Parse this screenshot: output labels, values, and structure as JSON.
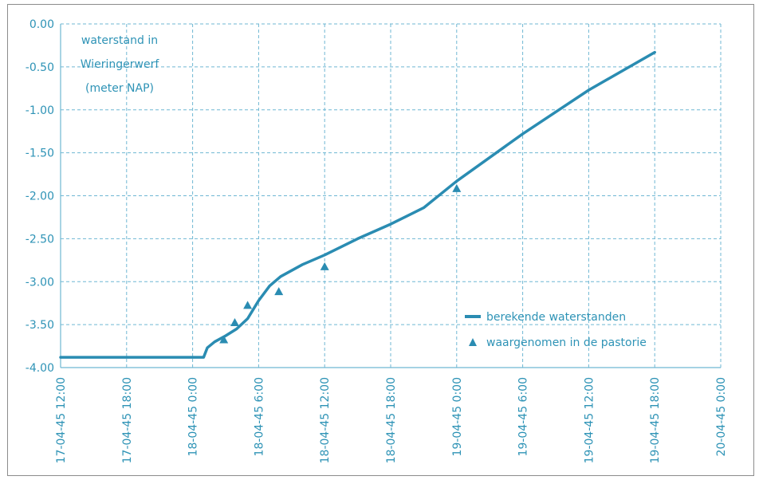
{
  "colors": {
    "series": "#2a8cb2",
    "text": "#2e93b6",
    "grid": "#6fb7d3",
    "frame": "#8c8c8c"
  },
  "chart_data": {
    "type": "line",
    "title": "",
    "annotation": [
      "waterstand in",
      "Wieringerwerf",
      "(meter NAP)"
    ],
    "xlabel": "",
    "ylabel": "",
    "xlim": [
      "17-04-45 12:00",
      "20-04-45 0:00"
    ],
    "ylim": [
      -4.0,
      0.0
    ],
    "x_ticks": [
      "17-04-45 12:00",
      "17-04-45 18:00",
      "18-04-45 0:00",
      "18-04-45 6:00",
      "18-04-45 12:00",
      "18-04-45 18:00",
      "19-04-45 0:00",
      "19-04-45 6:00",
      "19-04-45 12:00",
      "19-04-45 18:00",
      "20-04-45 0:00"
    ],
    "y_ticks": [
      "0.00",
      "-0.50",
      "-1.00",
      "-1.50",
      "-2.00",
      "-2.50",
      "-3.00",
      "-3.50",
      "-4.00"
    ],
    "grid": "dashed-both",
    "legend_position": "lower-right",
    "series": [
      {
        "name": "berekende waterstanden",
        "kind": "line",
        "points": [
          [
            "17-04-45 12:00",
            -3.88
          ],
          [
            "18-04-45 1:00",
            -3.88
          ],
          [
            "18-04-45 1:20",
            -3.77
          ],
          [
            "18-04-45 2:00",
            -3.7
          ],
          [
            "18-04-45 3:00",
            -3.63
          ],
          [
            "18-04-45 4:00",
            -3.55
          ],
          [
            "18-04-45 5:00",
            -3.43
          ],
          [
            "18-04-45 6:00",
            -3.22
          ],
          [
            "18-04-45 7:00",
            -3.05
          ],
          [
            "18-04-45 8:00",
            -2.94
          ],
          [
            "18-04-45 10:00",
            -2.8
          ],
          [
            "18-04-45 12:00",
            -2.69
          ],
          [
            "18-04-45 15:00",
            -2.5
          ],
          [
            "18-04-45 18:00",
            -2.33
          ],
          [
            "18-04-45 21:00",
            -2.14
          ],
          [
            "19-04-45 0:00",
            -1.83
          ],
          [
            "19-04-45 6:00",
            -1.28
          ],
          [
            "19-04-45 12:00",
            -0.77
          ],
          [
            "19-04-45 18:00",
            -0.33
          ]
        ]
      },
      {
        "name": "waargenomen in de pastorie",
        "kind": "marker",
        "points": [
          [
            "18-04-45 2:50",
            -3.68
          ],
          [
            "18-04-45 3:50",
            -3.48
          ],
          [
            "18-04-45 5:00",
            -3.28
          ],
          [
            "18-04-45 7:50",
            -3.12
          ],
          [
            "18-04-45 12:00",
            -2.83
          ],
          [
            "19-04-45 0:00",
            -1.92
          ]
        ]
      }
    ]
  }
}
